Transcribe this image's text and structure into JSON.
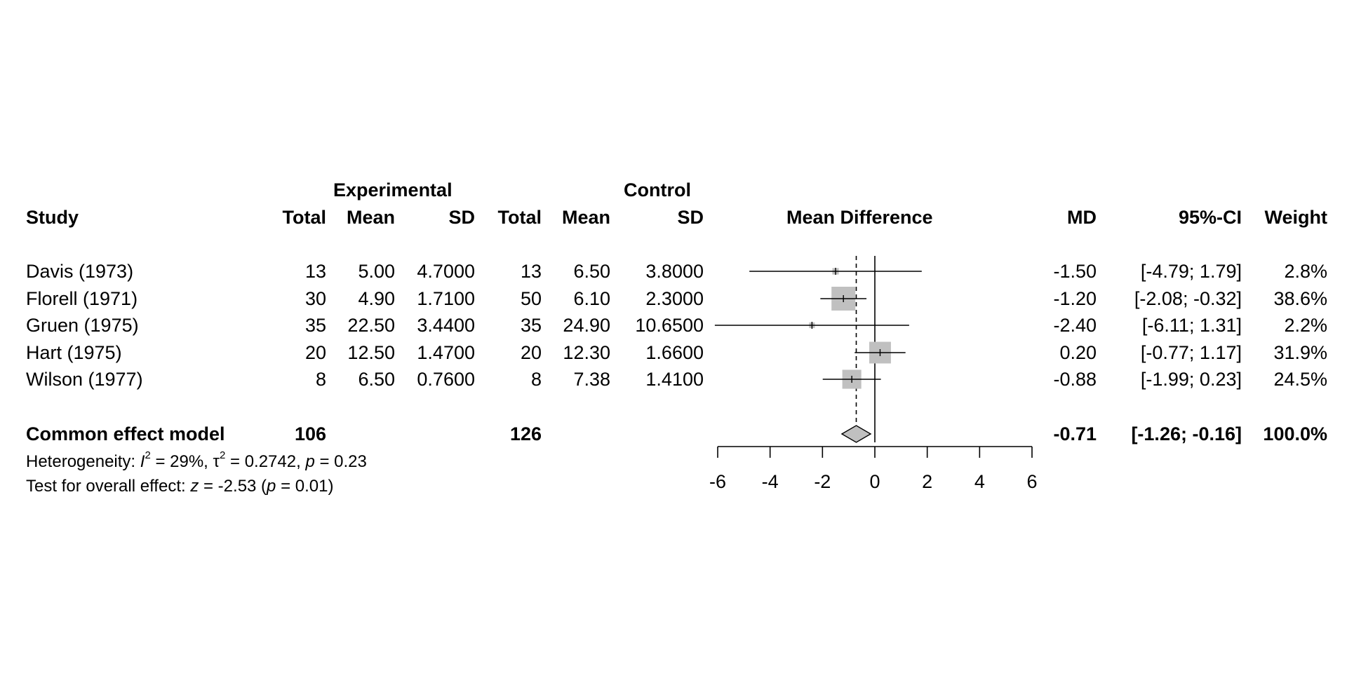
{
  "headers": {
    "study": "Study",
    "experimental_group": "Experimental",
    "control_group": "Control",
    "total": "Total",
    "mean": "Mean",
    "sd": "SD",
    "plot_title": "Mean Difference",
    "md": "MD",
    "ci": "95%-CI",
    "weight": "Weight"
  },
  "summary": {
    "label": "Common effect model",
    "exp_total": "106",
    "ctl_total": "126",
    "md": "-0.71",
    "ci": "[-1.26; -0.16]",
    "weight": "100.0%"
  },
  "heterogeneity": {
    "prefix": "Heterogeneity: ",
    "i2_symbol": "I",
    "i2_value": " = 29%, ",
    "tau2_symbol": "τ",
    "tau2_value": " = 0.2742, ",
    "p_symbol": "p",
    "p_value": " = 0.23"
  },
  "overall_test": {
    "prefix": "Test for overall effect: ",
    "z_symbol": "z",
    "z_value": " = -2.53 (",
    "p_symbol": "p",
    "p_value": " = 0.01)"
  },
  "colors": {
    "box": "#c0c0c0",
    "diamond": "#c0c0c0",
    "line": "#000000"
  },
  "chart_data": {
    "type": "forest",
    "xlim": [
      -6,
      6
    ],
    "xticks": [
      -6,
      -4,
      -2,
      0,
      2,
      4,
      6
    ],
    "null_value": 0,
    "pooled": {
      "md": -0.71,
      "lower": -1.26,
      "upper": -0.16
    },
    "studies": [
      {
        "study": "Davis (1973)",
        "exp_total": "13",
        "exp_mean": "5.00",
        "exp_sd": "4.7000",
        "ctl_total": "13",
        "ctl_mean": "6.50",
        "ctl_sd": "3.8000",
        "md": -1.5,
        "lower": -4.79,
        "upper": 1.79,
        "md_text": "-1.50",
        "ci_text": "[-4.79; 1.79]",
        "weight": 2.8,
        "weight_text": "2.8%"
      },
      {
        "study": "Florell (1971)",
        "exp_total": "30",
        "exp_mean": "4.90",
        "exp_sd": "1.7100",
        "ctl_total": "50",
        "ctl_mean": "6.10",
        "ctl_sd": "2.3000",
        "md": -1.2,
        "lower": -2.08,
        "upper": -0.32,
        "md_text": "-1.20",
        "ci_text": "[-2.08; -0.32]",
        "weight": 38.6,
        "weight_text": "38.6%"
      },
      {
        "study": "Gruen (1975)",
        "exp_total": "35",
        "exp_mean": "22.50",
        "exp_sd": "3.4400",
        "ctl_total": "35",
        "ctl_mean": "24.90",
        "ctl_sd": "10.6500",
        "md": -2.4,
        "lower": -6.11,
        "upper": 1.31,
        "md_text": "-2.40",
        "ci_text": "[-6.11; 1.31]",
        "weight": 2.2,
        "weight_text": "2.2%"
      },
      {
        "study": "Hart (1975)",
        "exp_total": "20",
        "exp_mean": "12.50",
        "exp_sd": "1.4700",
        "ctl_total": "20",
        "ctl_mean": "12.30",
        "ctl_sd": "1.6600",
        "md": 0.2,
        "lower": -0.77,
        "upper": 1.17,
        "md_text": "0.20",
        "ci_text": "[-0.77; 1.17]",
        "weight": 31.9,
        "weight_text": "31.9%"
      },
      {
        "study": "Wilson (1977)",
        "exp_total": "8",
        "exp_mean": "6.50",
        "exp_sd": "0.7600",
        "ctl_total": "8",
        "ctl_mean": "7.38",
        "ctl_sd": "1.4100",
        "md": -0.88,
        "lower": -1.99,
        "upper": 0.23,
        "md_text": "-0.88",
        "ci_text": "[-1.99; 0.23]",
        "weight": 24.5,
        "weight_text": "24.5%"
      }
    ]
  }
}
